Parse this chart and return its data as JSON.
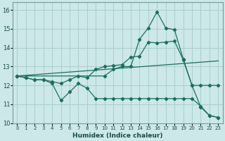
{
  "xlabel": "Humidex (Indice chaleur)",
  "xlim": [
    -0.5,
    23.5
  ],
  "ylim": [
    10,
    16.4
  ],
  "yticks": [
    10,
    11,
    12,
    13,
    14,
    15,
    16
  ],
  "xticks": [
    0,
    1,
    2,
    3,
    4,
    5,
    6,
    7,
    8,
    9,
    10,
    11,
    12,
    13,
    14,
    15,
    16,
    17,
    18,
    19,
    20,
    21,
    22,
    23
  ],
  "bg_color": "#cce8e8",
  "grid_color": "#aacece",
  "line_color": "#1a7060",
  "lines": [
    {
      "x": [
        0,
        1,
        2,
        3,
        4,
        5,
        6,
        7,
        8,
        9,
        10,
        11,
        12,
        13,
        14,
        15,
        16,
        17,
        18,
        19,
        20,
        21,
        22,
        23
      ],
      "y": [
        12.5,
        12.4,
        12.3,
        12.3,
        12.1,
        11.2,
        11.65,
        12.1,
        11.85,
        11.3,
        11.3,
        11.3,
        11.3,
        11.3,
        11.3,
        11.3,
        11.3,
        11.3,
        11.3,
        11.3,
        11.3,
        10.9,
        10.4,
        10.3
      ],
      "marker": true
    },
    {
      "x": [
        0,
        1,
        2,
        3,
        4,
        5,
        6,
        7,
        8,
        9,
        10,
        11,
        12,
        13,
        14,
        15,
        16,
        17,
        18,
        19,
        20,
        21,
        22,
        23
      ],
      "y": [
        12.5,
        12.4,
        12.3,
        12.3,
        12.2,
        12.1,
        12.3,
        12.5,
        12.4,
        12.85,
        13.0,
        13.05,
        13.1,
        13.5,
        13.55,
        14.3,
        14.25,
        14.3,
        14.35,
        13.35,
        12.0,
        12.0,
        12.0,
        12.0
      ],
      "marker": true
    },
    {
      "x": [
        0,
        10,
        11,
        12,
        13,
        14,
        15,
        16,
        17,
        18,
        19,
        20,
        21,
        22,
        23
      ],
      "y": [
        12.5,
        12.5,
        12.85,
        13.0,
        13.0,
        14.45,
        15.05,
        15.9,
        15.05,
        14.95,
        13.4,
        12.0,
        10.85,
        10.4,
        10.3
      ],
      "marker": true
    },
    {
      "x": [
        0,
        23
      ],
      "y": [
        12.5,
        13.3
      ],
      "marker": false
    }
  ]
}
